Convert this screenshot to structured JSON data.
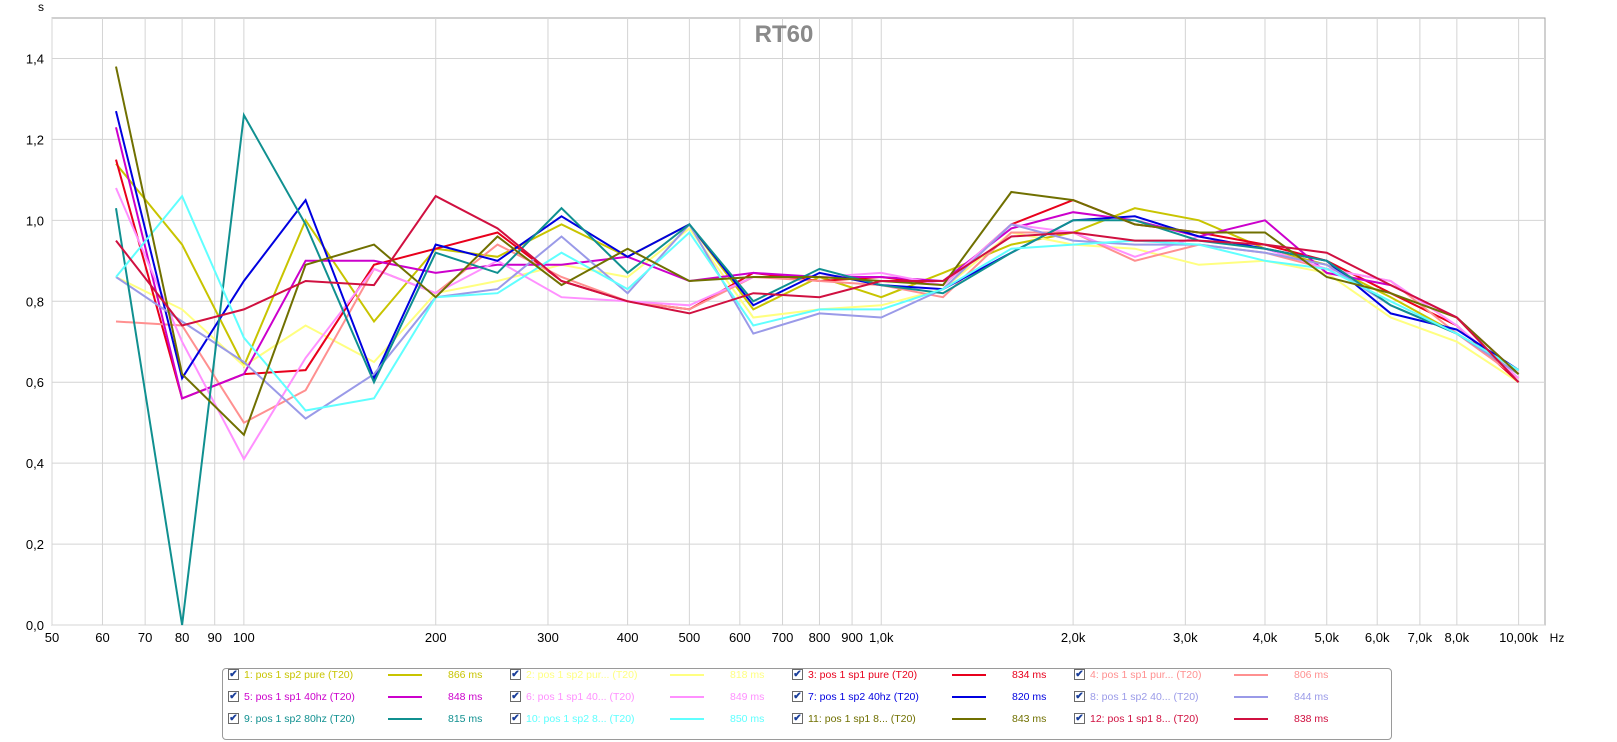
{
  "chart_data": {
    "type": "line",
    "title": "RT60",
    "ylabel": "s",
    "xlabel": "Hz",
    "xscale": "log",
    "xlim": [
      50,
      11000
    ],
    "ylim": [
      0,
      1.5
    ],
    "grid": true,
    "legend_position": "bottom",
    "y_ticks": [
      "0,0",
      "0,2",
      "0,4",
      "0,6",
      "0,8",
      "1,0",
      "1,2",
      "1,4"
    ],
    "y_tick_values": [
      0,
      0.2,
      0.4,
      0.6,
      0.8,
      1.0,
      1.2,
      1.4
    ],
    "x_ticks": [
      {
        "v": 50,
        "l": "50"
      },
      {
        "v": 60,
        "l": "60"
      },
      {
        "v": 70,
        "l": "70"
      },
      {
        "v": 80,
        "l": "80"
      },
      {
        "v": 90,
        "l": "90"
      },
      {
        "v": 100,
        "l": "100"
      },
      {
        "v": 200,
        "l": "200"
      },
      {
        "v": 300,
        "l": "300"
      },
      {
        "v": 400,
        "l": "400"
      },
      {
        "v": 500,
        "l": "500"
      },
      {
        "v": 600,
        "l": "600"
      },
      {
        "v": 700,
        "l": "700"
      },
      {
        "v": 800,
        "l": "800"
      },
      {
        "v": 900,
        "l": "900"
      },
      {
        "v": 1000,
        "l": "1,0k"
      },
      {
        "v": 2000,
        "l": "2,0k"
      },
      {
        "v": 3000,
        "l": "3,0k"
      },
      {
        "v": 4000,
        "l": "4,0k"
      },
      {
        "v": 5000,
        "l": "5,0k"
      },
      {
        "v": 6000,
        "l": "6,0k"
      },
      {
        "v": 7000,
        "l": "7,0k"
      },
      {
        "v": 8000,
        "l": "8,0k"
      },
      {
        "v": 10000,
        "l": "10,00k"
      }
    ],
    "x": [
      63,
      80,
      100,
      125,
      160,
      200,
      250,
      315,
      400,
      500,
      630,
      800,
      1000,
      1250,
      1600,
      2000,
      2500,
      3150,
      4000,
      5000,
      6300,
      8000,
      10000
    ],
    "series": [
      {
        "name": "1: pos 1 sp2 pure (T20)",
        "value_label": "866 ms",
        "color": "#c8c400",
        "checked": true,
        "values": [
          1.14,
          0.94,
          0.64,
          1.0,
          0.75,
          0.93,
          0.91,
          0.99,
          0.91,
          0.99,
          0.78,
          0.86,
          0.81,
          0.87,
          0.94,
          0.97,
          1.03,
          1.0,
          0.93,
          0.89,
          0.81,
          0.72,
          0.62
        ]
      },
      {
        "name": "2: pos 1 sp2 pur... (T20)",
        "value_label": "818 ms",
        "color": "#ffff80",
        "checked": true,
        "values": [
          0.86,
          0.78,
          0.64,
          0.74,
          0.65,
          0.82,
          0.85,
          0.89,
          0.86,
          0.98,
          0.76,
          0.78,
          0.79,
          0.83,
          0.97,
          0.94,
          0.93,
          0.89,
          0.9,
          0.87,
          0.76,
          0.7,
          0.6
        ]
      },
      {
        "name": "3: pos 1 sp1 pure (T20)",
        "value_label": "834 ms",
        "color": "#e8001c",
        "checked": true,
        "values": [
          1.15,
          0.56,
          0.62,
          0.63,
          0.89,
          0.93,
          0.97,
          0.85,
          0.8,
          0.78,
          0.87,
          0.85,
          0.86,
          0.84,
          0.99,
          1.05,
          0.99,
          0.97,
          0.94,
          0.9,
          0.82,
          0.74,
          0.6
        ]
      },
      {
        "name": "4: pos 1 sp1 pur... (T20)",
        "value_label": "806 ms",
        "color": "#ff9090",
        "checked": true,
        "values": [
          0.75,
          0.74,
          0.5,
          0.58,
          0.88,
          0.82,
          0.94,
          0.86,
          0.8,
          0.78,
          0.86,
          0.85,
          0.84,
          0.81,
          0.97,
          0.97,
          0.9,
          0.94,
          0.92,
          0.88,
          0.85,
          0.72,
          0.61
        ]
      },
      {
        "name": "5: pos 1 sp1 40hz (T20)",
        "value_label": "848 ms",
        "color": "#cc00cc",
        "checked": true,
        "values": [
          1.23,
          0.56,
          0.62,
          0.9,
          0.9,
          0.87,
          0.89,
          0.89,
          0.91,
          0.85,
          0.87,
          0.86,
          0.86,
          0.85,
          0.98,
          1.02,
          1.0,
          0.96,
          1.0,
          0.87,
          0.84,
          0.76,
          0.62
        ]
      },
      {
        "name": "6: pos 1 sp1 40... (T20)",
        "value_label": "849 ms",
        "color": "#ff90ff",
        "checked": true,
        "values": [
          1.08,
          0.7,
          0.41,
          0.66,
          0.88,
          0.82,
          0.9,
          0.81,
          0.8,
          0.79,
          0.86,
          0.86,
          0.87,
          0.84,
          0.99,
          0.97,
          0.91,
          0.96,
          0.93,
          0.88,
          0.85,
          0.74,
          0.61
        ]
      },
      {
        "name": "7: pos 1 sp2 40hz (T20)",
        "value_label": "820 ms",
        "color": "#0000e0",
        "checked": true,
        "values": [
          1.27,
          0.61,
          0.85,
          1.05,
          0.61,
          0.94,
          0.9,
          1.01,
          0.91,
          0.99,
          0.79,
          0.87,
          0.84,
          0.83,
          0.92,
          1.0,
          1.01,
          0.96,
          0.93,
          0.9,
          0.77,
          0.73,
          0.63
        ]
      },
      {
        "name": "8: pos 1 sp2 40... (T20)",
        "value_label": "844 ms",
        "color": "#9a9ae8",
        "checked": true,
        "values": [
          0.86,
          0.75,
          0.65,
          0.51,
          0.62,
          0.81,
          0.83,
          0.96,
          0.82,
          0.99,
          0.72,
          0.77,
          0.76,
          0.83,
          0.99,
          0.95,
          0.94,
          0.94,
          0.92,
          0.89,
          0.79,
          0.72,
          0.62
        ]
      },
      {
        "name": "9: pos 1 sp2 80hz (T20)",
        "value_label": "815 ms",
        "color": "#109090",
        "checked": true,
        "values": [
          1.03,
          0.0,
          1.26,
          0.99,
          0.6,
          0.92,
          0.87,
          1.03,
          0.87,
          0.99,
          0.8,
          0.88,
          0.84,
          0.82,
          0.92,
          1.0,
          1.0,
          0.95,
          0.93,
          0.9,
          0.79,
          0.72,
          0.63
        ]
      },
      {
        "name": "10: pos 1 sp2 8... (T20)",
        "value_label": "850 ms",
        "color": "#60ffff",
        "checked": true,
        "values": [
          0.86,
          1.06,
          0.71,
          0.53,
          0.56,
          0.81,
          0.82,
          0.92,
          0.83,
          0.97,
          0.74,
          0.78,
          0.78,
          0.83,
          0.93,
          0.94,
          0.95,
          0.94,
          0.9,
          0.88,
          0.8,
          0.72,
          0.63
        ]
      },
      {
        "name": "11: pos 1 sp1 8... (T20)",
        "value_label": "843 ms",
        "color": "#707000",
        "checked": true,
        "values": [
          1.38,
          0.62,
          0.47,
          0.89,
          0.94,
          0.81,
          0.96,
          0.84,
          0.93,
          0.85,
          0.86,
          0.86,
          0.85,
          0.84,
          1.07,
          1.05,
          0.99,
          0.97,
          0.97,
          0.86,
          0.82,
          0.76,
          0.62
        ]
      },
      {
        "name": "12: pos 1 sp1 8... (T20)",
        "value_label": "838 ms",
        "color": "#d01040",
        "checked": true,
        "values": [
          0.95,
          0.74,
          0.78,
          0.85,
          0.84,
          1.06,
          0.98,
          0.85,
          0.8,
          0.77,
          0.82,
          0.81,
          0.85,
          0.85,
          0.96,
          0.97,
          0.95,
          0.95,
          0.94,
          0.92,
          0.84,
          0.76,
          0.6
        ]
      }
    ]
  }
}
